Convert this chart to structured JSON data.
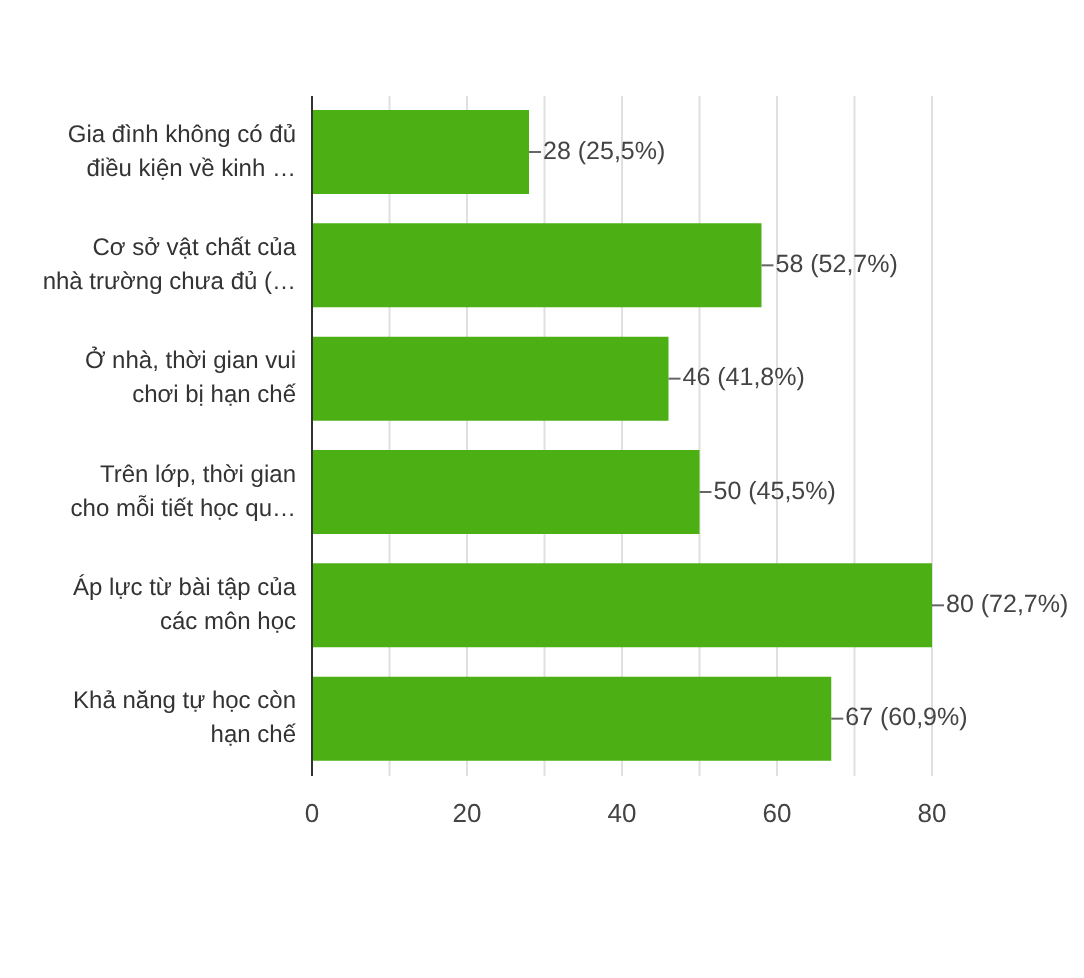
{
  "chart_data": {
    "type": "bar",
    "orientation": "horizontal",
    "categories": [
      "Gia đình không có đủ điều kiện về kinh …",
      "Cơ sở vật chất của nhà trường chưa đủ (…",
      "Ở nhà, thời gian vui chơi bị hạn chế",
      "Trên lớp, thời gian cho mỗi tiết học qu…",
      "Áp lực từ bài tập của các môn học",
      "Khả năng tự học còn hạn chế"
    ],
    "values": [
      28,
      58,
      46,
      50,
      80,
      67
    ],
    "value_labels": [
      "28 (25,5%)",
      "58 (52,7%)",
      "46 (41,8%)",
      "50 (45,5%)",
      "80 (72,7%)",
      "67 (60,9%)"
    ],
    "color": "#4caf14",
    "xlim": [
      0,
      80
    ],
    "xticks": [
      0,
      {
        "value": 10,
        "label": null
      },
      20,
      {
        "value": 30,
        "label": null
      },
      40,
      {
        "value": 50,
        "label": null
      },
      60,
      {
        "value": 70,
        "label": null
      },
      80
    ],
    "grid": "x",
    "legend": false
  }
}
